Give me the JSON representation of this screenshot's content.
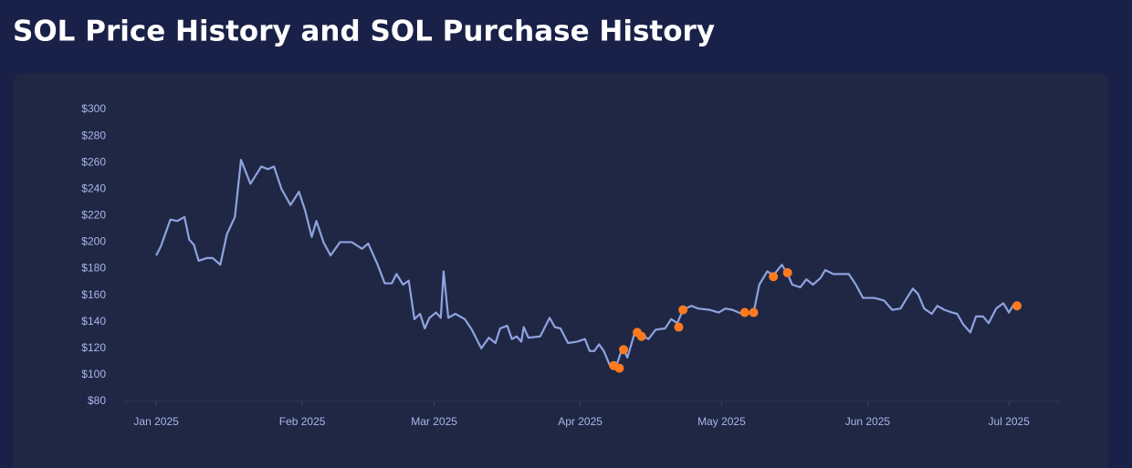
{
  "chart_data": {
    "type": "line",
    "title": "SOL Price History and SOL Purchase History",
    "xlim": [
      -7,
      192
    ],
    "xticks": [
      {
        "value": 0,
        "label": "Jan 2025"
      },
      {
        "value": 31,
        "label": "Feb 2025"
      },
      {
        "value": 59,
        "label": "Mar 2025"
      },
      {
        "value": 90,
        "label": "Apr 2025"
      },
      {
        "value": 120,
        "label": "May 2025"
      },
      {
        "value": 151,
        "label": "Jun 2025"
      },
      {
        "value": 181,
        "label": "Jul 2025"
      }
    ],
    "ylim": [
      80,
      300
    ],
    "yticks": [
      {
        "value": 80,
        "label": "$80"
      },
      {
        "value": 100,
        "label": "$100"
      },
      {
        "value": 120,
        "label": "$120"
      },
      {
        "value": 140,
        "label": "$140"
      },
      {
        "value": 160,
        "label": "$160"
      },
      {
        "value": 180,
        "label": "$180"
      },
      {
        "value": 200,
        "label": "$200"
      },
      {
        "value": 220,
        "label": "$220"
      },
      {
        "value": 240,
        "label": "$240"
      },
      {
        "value": 260,
        "label": "$260"
      },
      {
        "value": 280,
        "label": "$280"
      },
      {
        "value": 300,
        "label": "$300"
      }
    ],
    "grid": false,
    "series": [
      {
        "type": "line",
        "color": "#8fa3df",
        "x": [
          0,
          1,
          3,
          4.5,
          6,
          7,
          8,
          9,
          10.7,
          12,
          13.6,
          15,
          16.7,
          18,
          20,
          22.3,
          23.7,
          25,
          26.6,
          28.5,
          30.3,
          31.6,
          33,
          34,
          35.5,
          37,
          39,
          41.5,
          43.7,
          45,
          47,
          48.5,
          50,
          51,
          52.4,
          53.6,
          54.8,
          56,
          57,
          58,
          59.4,
          60.4,
          61,
          62,
          63.5,
          65.5,
          67,
          69,
          70.6,
          72,
          73,
          74.5,
          75.5,
          76.5,
          77.5,
          78,
          79,
          81.5,
          83.5,
          84.6,
          85.8,
          87.4,
          89.3,
          91,
          92,
          93,
          94,
          95,
          96.3,
          97.5,
          99,
          100,
          101.5,
          103,
          104.5,
          106,
          108,
          109.3,
          110.6,
          111.8,
          113.6,
          115,
          117.5,
          119.4,
          120.8,
          122.3,
          124.3,
          126.8,
          128,
          129.7,
          131,
          132.8,
          134,
          135,
          136.7,
          138,
          139.4,
          141,
          142,
          143.7,
          145,
          147,
          148.5,
          150,
          152.4,
          154.5,
          156.2,
          158,
          159,
          160.6,
          161.7,
          163,
          164.6,
          165.8,
          167.3,
          168.9,
          170,
          171.3,
          172.8,
          174,
          175.5,
          176.7,
          178.3,
          179.8,
          181,
          182
        ],
        "values": [
          190,
          197,
          217,
          216,
          219,
          202,
          198,
          186,
          188,
          188,
          183,
          206,
          219,
          262,
          244,
          257,
          255,
          257,
          240,
          228,
          238,
          224,
          204,
          216,
          200,
          190,
          200,
          200,
          195,
          199,
          183,
          169,
          169,
          176,
          168,
          171,
          142,
          146,
          135,
          143,
          147,
          143,
          178,
          143,
          146,
          142,
          134,
          120,
          128,
          124,
          135,
          137,
          127,
          129,
          125,
          136,
          128,
          129,
          143,
          136,
          135,
          124,
          125,
          127,
          118,
          118,
          123,
          118,
          107,
          105,
          121,
          113,
          131,
          130,
          127,
          134,
          135,
          142,
          139,
          149,
          152,
          150,
          149,
          147,
          150,
          149,
          146,
          147,
          168,
          178,
          175,
          183,
          176,
          168,
          166,
          172,
          168,
          173,
          179,
          176,
          176,
          176,
          168,
          158,
          158,
          156,
          149,
          150,
          156,
          165,
          161,
          150,
          146,
          152,
          149,
          147,
          146,
          138,
          132,
          144,
          144,
          139,
          150,
          154,
          147,
          153
        ]
      },
      {
        "type": "scatter",
        "color": "#ff7a1f",
        "x": [
          97.1,
          98.3,
          99.2,
          102.1,
          103,
          110.9,
          111.8,
          124.9,
          126.8,
          131,
          134,
          182.7
        ],
        "values": [
          107,
          105,
          119,
          132,
          129,
          136,
          149,
          147,
          147,
          174,
          177,
          152
        ]
      }
    ]
  }
}
